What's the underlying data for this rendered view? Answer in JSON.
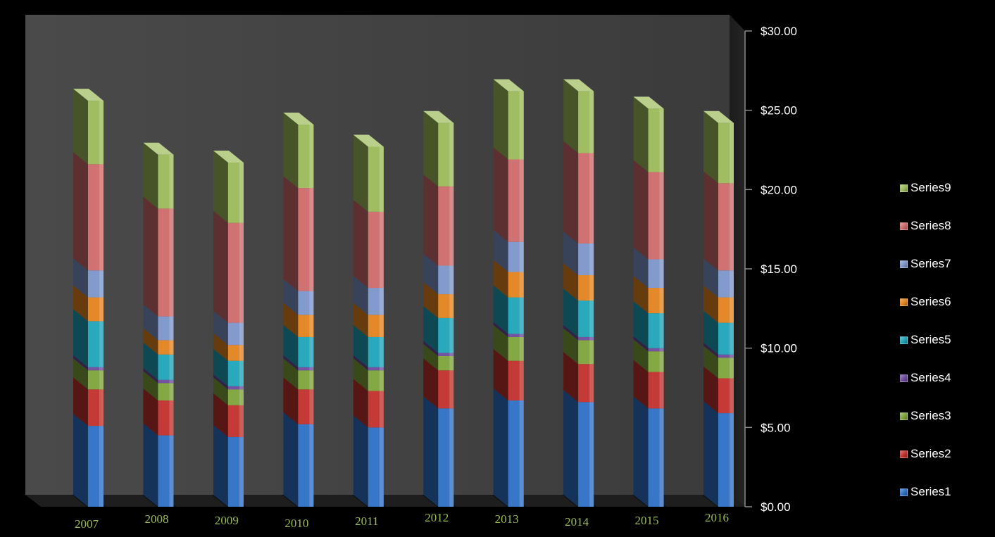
{
  "chart_data": {
    "type": "bar",
    "stacked": true,
    "three_d": true,
    "title": "",
    "xlabel": "",
    "ylabel": "",
    "ylim": [
      0,
      30
    ],
    "y_ticks": [
      "$0.00",
      "$5.00",
      "$10.00",
      "$15.00",
      "$20.00",
      "$25.00",
      "$30.00"
    ],
    "y_tick_values": [
      0,
      5,
      10,
      15,
      20,
      25,
      30
    ],
    "y_axis_side": "right",
    "legend_position": "right",
    "categories": [
      "2007",
      "2008",
      "2009",
      "2010",
      "2011",
      "2012",
      "2013",
      "2014",
      "2015",
      "2016"
    ],
    "series": [
      {
        "name": "Series1",
        "color": "#2e6fc4",
        "values": [
          5.1,
          4.5,
          4.4,
          5.2,
          5.0,
          6.2,
          6.7,
          6.6,
          6.2,
          5.9
        ]
      },
      {
        "name": "Series2",
        "color": "#c0302c",
        "values": [
          2.3,
          2.2,
          2.0,
          2.2,
          2.3,
          2.4,
          2.5,
          2.4,
          2.3,
          2.2
        ]
      },
      {
        "name": "Series3",
        "color": "#7ea33a",
        "values": [
          1.2,
          1.1,
          1.0,
          1.2,
          1.3,
          0.9,
          1.5,
          1.5,
          1.3,
          1.3
        ]
      },
      {
        "name": "Series4",
        "color": "#6e4a9e",
        "values": [
          0.2,
          0.2,
          0.2,
          0.2,
          0.2,
          0.2,
          0.2,
          0.2,
          0.2,
          0.2
        ]
      },
      {
        "name": "Series5",
        "color": "#1fa3b8",
        "values": [
          2.9,
          1.6,
          1.6,
          1.9,
          1.9,
          2.2,
          2.3,
          2.3,
          2.2,
          2.0
        ]
      },
      {
        "name": "Series6",
        "color": "#e3831f",
        "values": [
          1.5,
          0.9,
          1.0,
          1.4,
          1.4,
          1.5,
          1.6,
          1.6,
          1.6,
          1.6
        ]
      },
      {
        "name": "Series7",
        "color": "#7c95c9",
        "values": [
          1.7,
          1.5,
          1.4,
          1.5,
          1.7,
          1.8,
          1.9,
          2.0,
          1.8,
          1.7
        ]
      },
      {
        "name": "Series8",
        "color": "#cc6b6a",
        "values": [
          6.7,
          6.8,
          6.3,
          6.5,
          4.8,
          5.0,
          5.2,
          5.7,
          5.5,
          5.5
        ]
      },
      {
        "name": "Series9",
        "color": "#9bbb59",
        "values": [
          4.0,
          3.4,
          3.8,
          4.0,
          4.1,
          4.0,
          4.3,
          3.9,
          4.0,
          3.8
        ]
      }
    ]
  }
}
